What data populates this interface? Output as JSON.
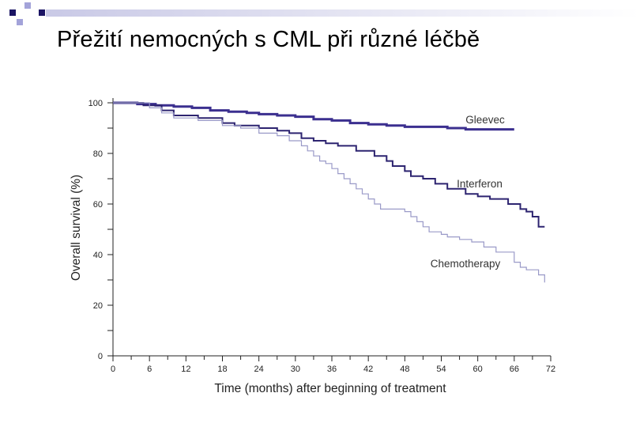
{
  "slide": {
    "title": "Přežití nemocných s CML při různé léčbě"
  },
  "colors": {
    "decor_dark": "#1b1464",
    "decor_light": "#a3a3d9",
    "decor_bar_start": "#c9c9e6",
    "axis": "#222222",
    "text": "#222222"
  },
  "chart_data": {
    "type": "line",
    "step": true,
    "xlabel": "Time (months) after beginning of treatment",
    "ylabel": "Overall survival (%)",
    "xlim": [
      0,
      72
    ],
    "ylim": [
      0,
      100
    ],
    "xticks": [
      0,
      6,
      12,
      18,
      24,
      30,
      36,
      42,
      48,
      54,
      60,
      66,
      72
    ],
    "yticks": [
      0,
      20,
      40,
      60,
      80,
      100
    ],
    "grid": false,
    "series": [
      {
        "name": "Gleevec",
        "color": "#3b2f8f",
        "x": [
          0,
          4,
          7,
          10,
          13,
          16,
          19,
          22,
          24,
          27,
          30,
          33,
          36,
          39,
          42,
          45,
          48,
          51,
          55,
          58,
          66
        ],
        "y": [
          100,
          99.5,
          99,
          98.5,
          98,
          97,
          96.5,
          96,
          95.5,
          95,
          94.5,
          93.5,
          93,
          92,
          91.5,
          91,
          90.5,
          90.5,
          90,
          89.5,
          89.5
        ]
      },
      {
        "name": "Interferon",
        "color": "#2d2470",
        "x": [
          0,
          5,
          8,
          10,
          14,
          18,
          20,
          24,
          27,
          29,
          31,
          33,
          35,
          37,
          40,
          43,
          45,
          46,
          48,
          49,
          51,
          53,
          55,
          58,
          60,
          62,
          65,
          67,
          68,
          69,
          70,
          71
        ],
        "y": [
          100,
          99,
          97,
          95,
          94,
          92,
          91,
          90,
          89,
          88,
          86,
          85,
          84,
          83,
          81,
          79,
          77,
          75,
          73,
          71,
          70,
          68,
          66,
          64,
          63,
          62,
          60,
          58,
          57,
          55,
          51,
          51
        ]
      },
      {
        "name": "Chemotherapy",
        "color": "#9a9ac8",
        "x": [
          0,
          6,
          8,
          10,
          14,
          18,
          21,
          24,
          27,
          29,
          31,
          32,
          33,
          34,
          35,
          36,
          37,
          38,
          39,
          40,
          41,
          42,
          43,
          44,
          46,
          48,
          49,
          50,
          51,
          52,
          54,
          55,
          57,
          59,
          61,
          63,
          66,
          67,
          68,
          70,
          71
        ],
        "y": [
          100,
          98,
          96,
          94,
          93,
          91,
          90,
          88,
          87,
          85,
          83,
          81,
          79,
          77,
          76,
          74,
          72,
          70,
          68,
          66,
          64,
          62,
          60,
          58,
          58,
          57,
          55,
          53,
          51,
          49,
          48,
          47,
          46,
          45,
          43,
          41,
          37,
          35,
          34,
          32,
          29
        ]
      }
    ]
  }
}
